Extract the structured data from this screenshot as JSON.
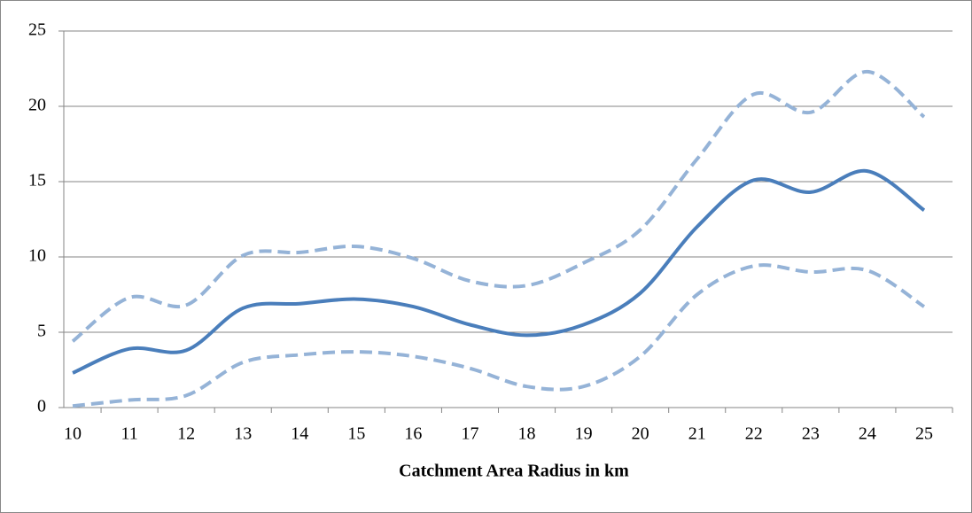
{
  "chart_data": {
    "type": "line",
    "x_label": "Catchment Area Radius in km",
    "categories": [
      "10",
      "11",
      "12",
      "13",
      "14",
      "15",
      "16",
      "17",
      "18",
      "19",
      "20",
      "21",
      "22",
      "23",
      "24",
      "25"
    ],
    "series": [
      {
        "color": "#95b3d7",
        "dashed": true,
        "values": [
          4.4,
          7.3,
          6.8,
          10.1,
          10.3,
          10.7,
          9.9,
          8.4,
          8.1,
          9.6,
          11.8,
          16.5,
          20.8,
          19.6,
          22.3,
          19.3
        ]
      },
      {
        "color": "#4a7ebb",
        "dashed": false,
        "values": [
          2.3,
          3.9,
          3.8,
          6.6,
          6.9,
          7.2,
          6.7,
          5.5,
          4.8,
          5.5,
          7.6,
          12.0,
          15.1,
          14.3,
          15.7,
          13.1
        ]
      },
      {
        "color": "#95b3d7",
        "dashed": true,
        "values": [
          0.1,
          0.5,
          0.8,
          3.0,
          3.5,
          3.7,
          3.4,
          2.6,
          1.4,
          1.4,
          3.4,
          7.5,
          9.4,
          9.0,
          9.1,
          6.7
        ]
      }
    ],
    "ylim": [
      0,
      25
    ],
    "yticks": [
      0,
      5,
      10,
      15,
      20,
      25
    ],
    "grid": true
  }
}
